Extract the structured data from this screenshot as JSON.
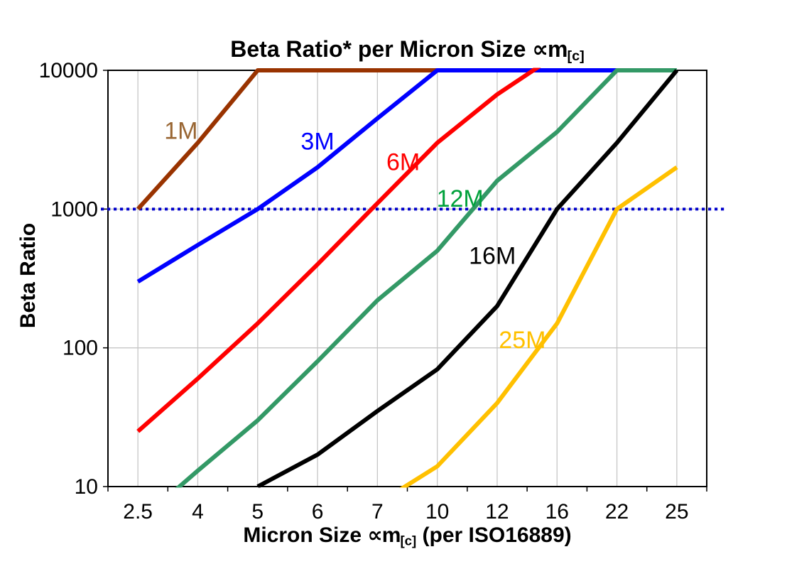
{
  "page": {
    "background": "#FFFFFF"
  },
  "title": {
    "text": "Beta Ratio* per Micron Size ",
    "symbol": "∝m",
    "subscript": "[c]"
  },
  "y_axis": {
    "title": "Beta Ratio",
    "ticks": [
      "10000",
      "1000",
      "100",
      "10"
    ],
    "tick_values": [
      10000,
      1000,
      100,
      10
    ]
  },
  "x_axis": {
    "title_pre": "Micron Size ",
    "symbol": "∝m",
    "subscript": "[c]",
    "title_post": " (per ISO16889)"
  },
  "reference_line": {
    "value": 1000,
    "color": "#0000CC",
    "style": "dotted"
  },
  "styles": {
    "grid_color": "#C6C6C6",
    "axis_color": "#000000",
    "line_width": 6,
    "tick_font_size": 30,
    "series_label_font_size": 34
  },
  "chart_data": {
    "type": "line",
    "title": "Beta Ratio* per Micron Size ∝m[c]",
    "xlabel": "Micron Size ∝m[c] (per ISO16889)",
    "ylabel": "Beta Ratio",
    "x_categories": [
      "2.5",
      "4",
      "5",
      "6",
      "7",
      "10",
      "12",
      "16",
      "22",
      "25"
    ],
    "y_scale": "log",
    "ylim": [
      10,
      10000
    ],
    "y_ticks": [
      10,
      100,
      1000,
      10000
    ],
    "grid": "vertical category gridlines + horizontal at 100 and 1000",
    "legend_position": "inline colored labels next to each curve",
    "reference_line_y": 1000,
    "series": [
      {
        "name": "1M",
        "line_color": "#993300",
        "label_color": "#996633",
        "label_xi": 0.72,
        "label_y": 3700,
        "values": [
          1000,
          3000,
          10000,
          10000,
          10000,
          10000,
          null,
          null,
          null,
          null
        ]
      },
      {
        "name": "3M",
        "line_color": "#0000FF",
        "label_color": "#0000FF",
        "label_xi": 3.0,
        "label_y": 3100,
        "values": [
          300,
          550,
          1000,
          2000,
          4500,
          10000,
          10000,
          10000,
          10000,
          null
        ]
      },
      {
        "name": "6M",
        "line_color": "#FF0000",
        "label_color": "#FF0000",
        "label_xi": 4.43,
        "label_y": 2200,
        "values": [
          25,
          60,
          150,
          400,
          1100,
          3000,
          6700,
          13000,
          null,
          null
        ]
      },
      {
        "name": "12M",
        "line_color": "#339966",
        "label_color": "#00A13B",
        "label_xi": 5.38,
        "label_y": 1200,
        "values": [
          5.5,
          13,
          30,
          80,
          220,
          500,
          1600,
          3600,
          10000,
          10000
        ]
      },
      {
        "name": "16M",
        "line_color": "#000000",
        "label_color": "#000000",
        "label_xi": 5.92,
        "label_y": 465,
        "values": [
          null,
          null,
          10,
          17,
          35,
          70,
          200,
          1000,
          3000,
          10000
        ]
      },
      {
        "name": "25M",
        "line_color": "#FFC000",
        "label_color": "#FFC000",
        "label_xi": 6.42,
        "label_y": 115,
        "values": [
          null,
          null,
          null,
          null,
          7.5,
          14,
          40,
          150,
          1000,
          2000
        ]
      }
    ]
  }
}
